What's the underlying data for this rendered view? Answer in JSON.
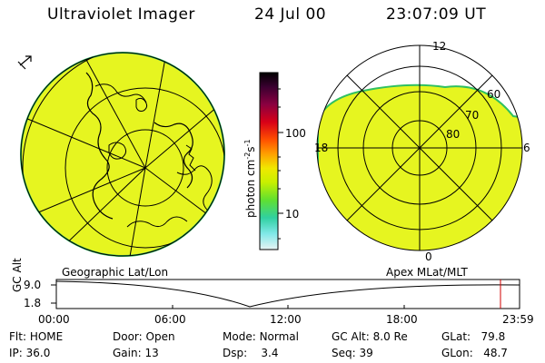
{
  "header": {
    "title": "Ultraviolet Imager",
    "date": "24 Jul 00",
    "time": "23:07:09 UT"
  },
  "colorbar": {
    "unit_label": "photon cm",
    "unit_sup1": "-2",
    "unit_mid": "s",
    "unit_sup2": "-1",
    "tick_100": "100",
    "tick_10": "10",
    "colors": [
      "#000000",
      "#3a0030",
      "#8a0040",
      "#d80018",
      "#ff5000",
      "#ffa000",
      "#f0e800",
      "#c8f000",
      "#60e030",
      "#30d0a0",
      "#80e8e8",
      "#e8f4f4"
    ]
  },
  "left_map": {
    "fill_color": "#e6f520",
    "caption": "Geographic Lat/Lon"
  },
  "right_map": {
    "fill_color": "#e6f520",
    "caption": "Apex MLat/MLT",
    "mlt_labels": {
      "top": "12",
      "bottom": "0",
      "left": "18",
      "right": "6"
    },
    "lat_labels": [
      "60",
      "70",
      "80"
    ]
  },
  "altitude_plot": {
    "ylabel": "GC Alt",
    "y_ticks": [
      "9.0",
      "1.8"
    ],
    "x_ticks": [
      "00:00",
      "06:00",
      "12:00",
      "18:00",
      "23:59"
    ]
  },
  "status": {
    "flt_label": "Flt:",
    "flt_value": "HOME",
    "ip_label": "IP:",
    "ip_value": "36.0",
    "door_label": "Door:",
    "door_value": "Open",
    "gain_label": "Gain:",
    "gain_value": "13",
    "mode_label": "Mode:",
    "mode_value": "Normal",
    "dsp_label": "Dsp:",
    "dsp_value": "3.4",
    "gcalt_label": "GC Alt:",
    "gcalt_value": "8.0 Re",
    "seq_label": "Seq:",
    "seq_value": "39",
    "glat_label": "GLat:",
    "glat_value": "79.8",
    "glon_label": "GLon:",
    "glon_value": "48.7"
  }
}
